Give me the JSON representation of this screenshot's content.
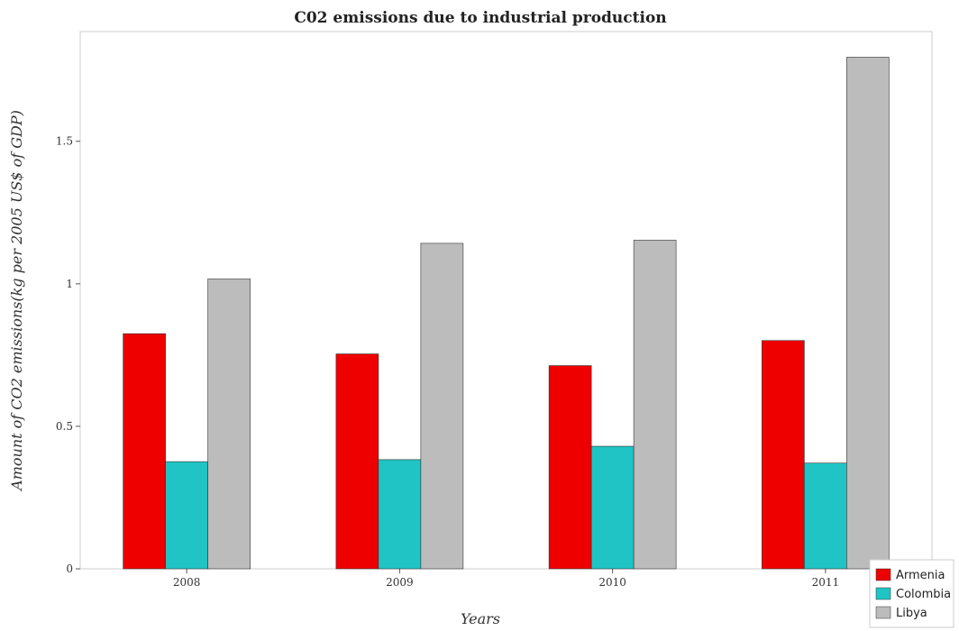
{
  "chart_data": {
    "type": "bar",
    "title": "C02 emissions due to industrial production",
    "xlabel": "Years",
    "ylabel": "Amount of CO2 emissions(kg per 2005 US$ of GDP)",
    "categories": [
      "2008",
      "2009",
      "2010",
      "2011"
    ],
    "series": [
      {
        "name": "Armenia",
        "color": "#ee0000",
        "values": [
          0.825,
          0.754,
          0.713,
          0.801
        ]
      },
      {
        "name": "Colombia",
        "color": "#20c4c4",
        "values": [
          0.376,
          0.383,
          0.43,
          0.371
        ]
      },
      {
        "name": "Libya",
        "color": "#bcbcbc",
        "values": [
          1.017,
          1.142,
          1.153,
          1.795
        ]
      }
    ],
    "yticks": [
      0,
      0.5,
      1,
      1.5
    ],
    "ytick_labels": [
      "0",
      "0.5",
      "1",
      "1.5"
    ],
    "ylim": [
      0,
      1.885
    ],
    "legend_position": "bottom-right",
    "grid": false
  }
}
